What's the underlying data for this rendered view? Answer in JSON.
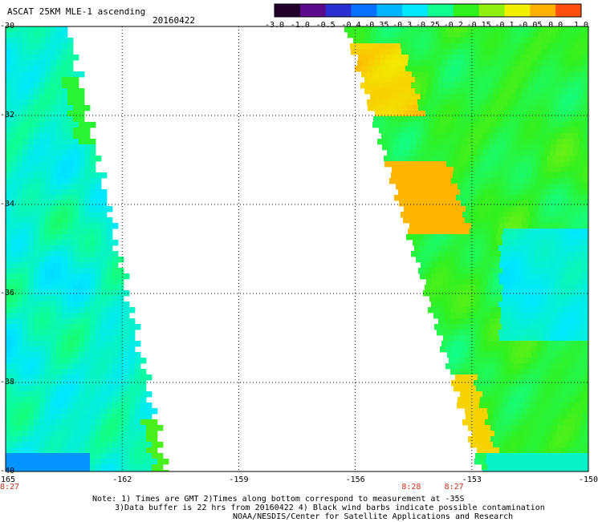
{
  "header": {
    "title": "ASCAT 25KM MLE-1 ascending",
    "date": "20160422"
  },
  "colorbar": {
    "labels": [
      "-3.0",
      "-1.0",
      "-0.5",
      "-0.4",
      "-0.35",
      "-0.3",
      "-0.25",
      "-0.2",
      "-0.15",
      "-0.1",
      "-0.05",
      "0.0",
      "1.0"
    ],
    "colors": [
      "#20002a",
      "#5a0a8a",
      "#2a30d0",
      "#0a70ff",
      "#00b4ff",
      "#00e8ff",
      "#10ff90",
      "#30f020",
      "#90f010",
      "#f0f000",
      "#ffb000",
      "#ff5010"
    ]
  },
  "map": {
    "x_ticks": [
      "-165",
      "-162",
      "-159",
      "-156",
      "-153",
      "-150"
    ],
    "y_ticks": [
      "-30",
      "-32",
      "-34",
      "-36",
      "-38",
      "-40"
    ],
    "lon_range": [
      -165,
      -150
    ],
    "lat_range": [
      -40,
      -30
    ],
    "time_labels": [
      {
        "text": "8:27",
        "lon": -165.0
      },
      {
        "text": "8:28",
        "lon": -154.6
      },
      {
        "text": "8:27",
        "lon": -153.5
      }
    ],
    "grid": true
  },
  "notes": {
    "line1": "Note: 1) Times are GMT 2)Times along bottom correspond to measurement at -35S",
    "line2": "3)Data buffer is 22 hrs from 20160422 4) Black wind barbs indicate possible contamination",
    "line3": "NOAA/NESDIS/Center for Satellite Applications and Research"
  }
}
